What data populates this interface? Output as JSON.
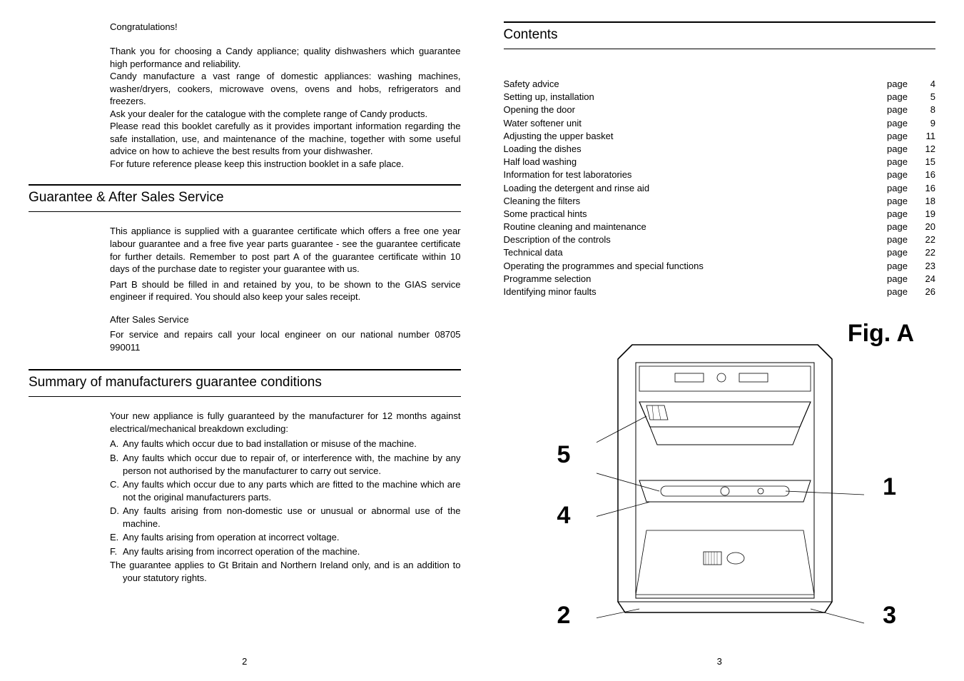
{
  "left": {
    "intro_title": "Congratulations!",
    "intro_paragraphs": [
      "Thank you for choosing a Candy appliance; quality dishwashers which guarantee high performance and reliability.",
      "Candy manufacture a vast range of domestic appliances: washing machines, washer/dryers, cookers, microwave ovens, ovens and hobs, refrigerators and freezers.",
      "Ask your dealer for the catalogue with the complete range of Candy products.",
      "Please read this booklet carefully as it provides  important information regarding the safe installation, use, and maintenance of the machine, together with some useful advice on how to achieve the best results from your dishwasher.",
      "For future reference please keep this instruction booklet in a safe place."
    ],
    "guarantee_header": "Guarantee & After Sales Service",
    "guarantee_body": [
      "This appliance is supplied with a guarantee certificate which offers a free one year labour guarantee  and  a free five year parts guarantee - see the guarantee certificate for further details. Remember to post part A of the guarantee certificate within 10 days of the purchase date to  register your guarantee with us.",
      "Part B should be filled in and retained by you, to be shown to the GIAS service engineer if required. You should also keep your sales receipt."
    ],
    "after_sales_heading": "After Sales Service",
    "after_sales_body": "For service and repairs call your local engineer on our national number 08705 990011",
    "summary_header": "Summary of manufacturers guarantee conditions",
    "summary_intro": "Your new appliance is fully guaranteed by the manufacturer for 12 months against electrical/mechanical breakdown excluding:",
    "summary_items": [
      {
        "marker": "A.",
        "text": "Any faults which occur due to bad installation or misuse of the machine."
      },
      {
        "marker": "B.",
        "text": "Any faults which occur due to repair of, or interference with, the machine by any person not authorised by the manufacturer to carry out service."
      },
      {
        "marker": "C.",
        "text": "Any faults which occur due to any parts which are fitted to the machine which are not the original manufacturers parts."
      },
      {
        "marker": "D.",
        "text": "Any faults arising from non-domestic use or unusual or abnormal use of the machine."
      },
      {
        "marker": "E.",
        "text": "Any faults arising from operation at incorrect voltage."
      },
      {
        "marker": "F.",
        "text": "Any faults arising from incorrect operation of the machine."
      }
    ],
    "summary_footer": "The guarantee applies to Gt Britain and Northern Ireland only, and is an addition to your statutory rights.",
    "page_num": "2"
  },
  "right": {
    "contents_header": "Contents",
    "toc": [
      {
        "title": "Safety advice",
        "num": "4"
      },
      {
        "title": "Setting up, installation",
        "num": "5"
      },
      {
        "title": "Opening the door",
        "num": "8"
      },
      {
        "title": "Water softener unit",
        "num": "9"
      },
      {
        "title": "Adjusting the upper basket",
        "num": "11"
      },
      {
        "title": "Loading the dishes",
        "num": "12"
      },
      {
        "title": "Half load washing",
        "num": "15"
      },
      {
        "title": "Information for test laboratories",
        "num": "16"
      },
      {
        "title": "Loading the detergent and rinse aid",
        "num": "16"
      },
      {
        "title": "Cleaning the filters",
        "num": "18"
      },
      {
        "title": "Some practical hints",
        "num": "19"
      },
      {
        "title": "Routine cleaning and maintenance",
        "num": "20"
      },
      {
        "title": "Description of the controls",
        "num": "22"
      },
      {
        "title": "Technical data",
        "num": "22"
      },
      {
        "title": "Operating the programmes and special functions",
        "num": "23"
      },
      {
        "title": "Programme selection",
        "num": "24"
      },
      {
        "title": "Identifying minor faults",
        "num": "26"
      }
    ],
    "page_label": "page",
    "fig_label": "Fig. A",
    "callouts": {
      "c1": "1",
      "c2": "2",
      "c3": "3",
      "c4": "4",
      "c5": "5"
    },
    "page_num": "3"
  },
  "style": {
    "body_font_size": 13,
    "header_font_size": 19,
    "fig_label_font_size": 34,
    "text_color": "#000000",
    "bg_color": "#ffffff",
    "rule_top_width": 2,
    "rule_bottom_width": 1
  }
}
